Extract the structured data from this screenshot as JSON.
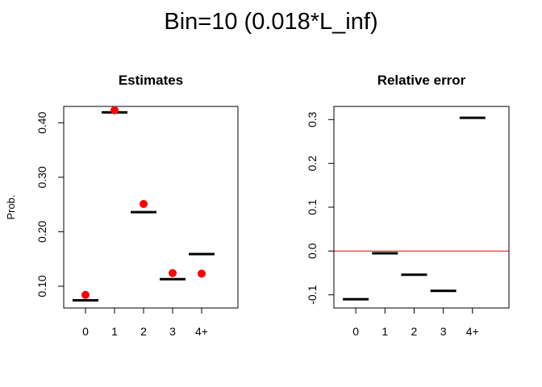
{
  "figure": {
    "title": "Bin=10 (0.018*L_inf)"
  },
  "chart_data": [
    {
      "type": "scatter",
      "title": "Estimates",
      "xlabel": "",
      "ylabel": "Prob.",
      "categories": [
        "0",
        "1",
        "2",
        "3",
        "4+"
      ],
      "ylim": [
        0.06,
        0.43
      ],
      "yticks": [
        0.1,
        0.2,
        0.3,
        0.4
      ],
      "ytick_labels": [
        "0.10",
        "0.20",
        "0.30",
        "0.40"
      ],
      "series": [
        {
          "marker": "horizontal-segment",
          "color": "#000000",
          "values": [
            0.074,
            0.419,
            0.236,
            0.113,
            0.159
          ]
        },
        {
          "marker": "point",
          "color": "#ff0000",
          "values": [
            0.084,
            0.423,
            0.251,
            0.124,
            0.123
          ]
        }
      ],
      "grid": false,
      "legend": "none"
    },
    {
      "type": "scatter",
      "title": "Relative error",
      "xlabel": "",
      "ylabel": "",
      "categories": [
        "0",
        "1",
        "2",
        "3",
        "4+"
      ],
      "ylim": [
        -0.13,
        0.33
      ],
      "yticks": [
        -0.1,
        0.0,
        0.1,
        0.2,
        0.3
      ],
      "ytick_labels": [
        "-0.1",
        "0.0",
        "0.1",
        "0.2",
        "0.3"
      ],
      "reference_line": {
        "value": 0.0,
        "color": "#ff0000"
      },
      "series": [
        {
          "marker": "horizontal-segment",
          "color": "#000000",
          "values": [
            -0.11,
            -0.005,
            -0.054,
            -0.091,
            0.304
          ]
        }
      ],
      "grid": false,
      "legend": "none"
    }
  ]
}
